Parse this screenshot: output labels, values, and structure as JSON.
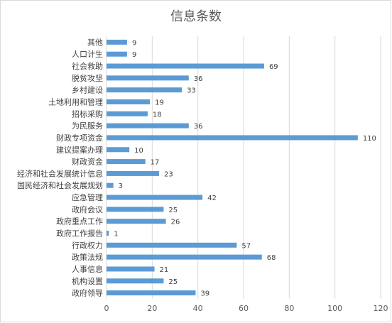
{
  "chart_data": {
    "type": "bar",
    "orientation": "horizontal",
    "title": "信息条数",
    "categories": [
      "其他",
      "人口计生",
      "社会救助",
      "脱贫攻坚",
      "乡村建设",
      "土地利用和管理",
      "招标采购",
      "为民服务",
      "财政专项资金",
      "建议提案办理",
      "财政资金",
      "经济和社会发展统计信息",
      "国民经济和社会发展规划",
      "应急管理",
      "政府会议",
      "政府重点工作",
      "政府工作报告",
      "行政权力",
      "政策法规",
      "人事信息",
      "机构设置",
      "政府领导"
    ],
    "values": [
      9,
      9,
      69,
      36,
      33,
      19,
      18,
      36,
      110,
      10,
      17,
      23,
      3,
      42,
      25,
      26,
      1,
      57,
      68,
      21,
      25,
      39
    ],
    "xlim": [
      0,
      120
    ],
    "xticks": [
      0,
      20,
      40,
      60,
      80,
      100,
      120
    ],
    "grid": true,
    "legend": "none",
    "bar_color": "#5b9bd5",
    "grid_color": "#d9d9d9"
  }
}
